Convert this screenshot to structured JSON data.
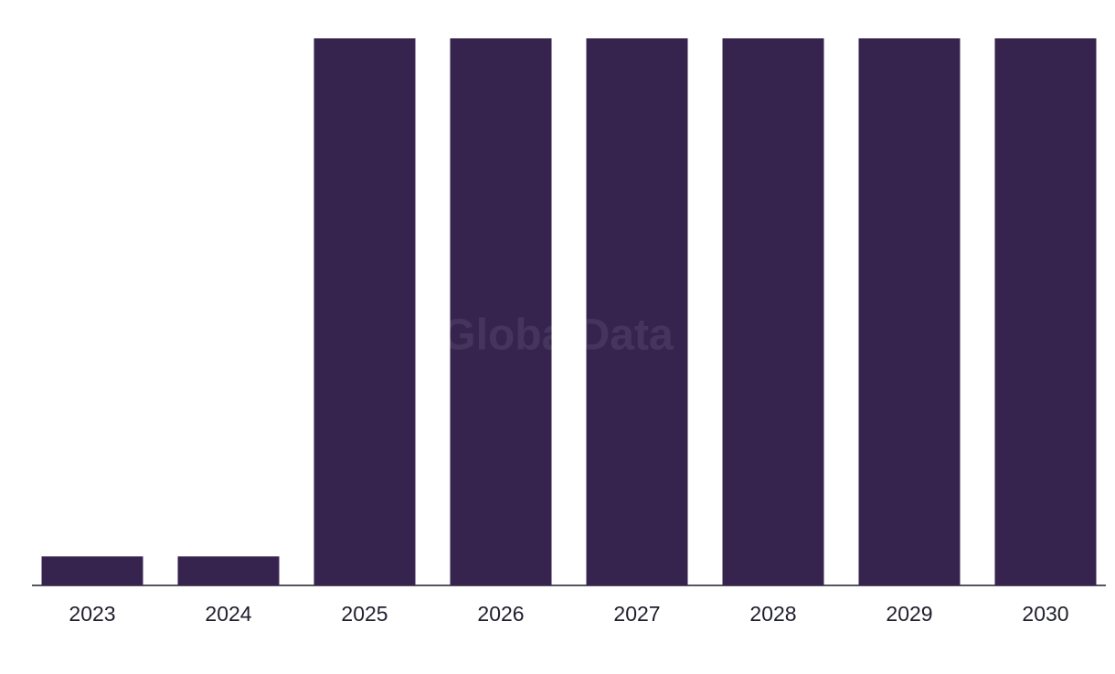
{
  "chart_data": {
    "type": "bar",
    "watermark": "GlobalData",
    "categories": [
      "2023",
      "2024",
      "2025",
      "2026",
      "2027",
      "2028",
      "2029",
      "2030"
    ],
    "values": [
      5.3,
      5.3,
      100,
      100,
      100,
      100,
      100,
      100
    ],
    "color": "#36244f",
    "ylim": [
      0,
      100
    ],
    "grid": false
  }
}
